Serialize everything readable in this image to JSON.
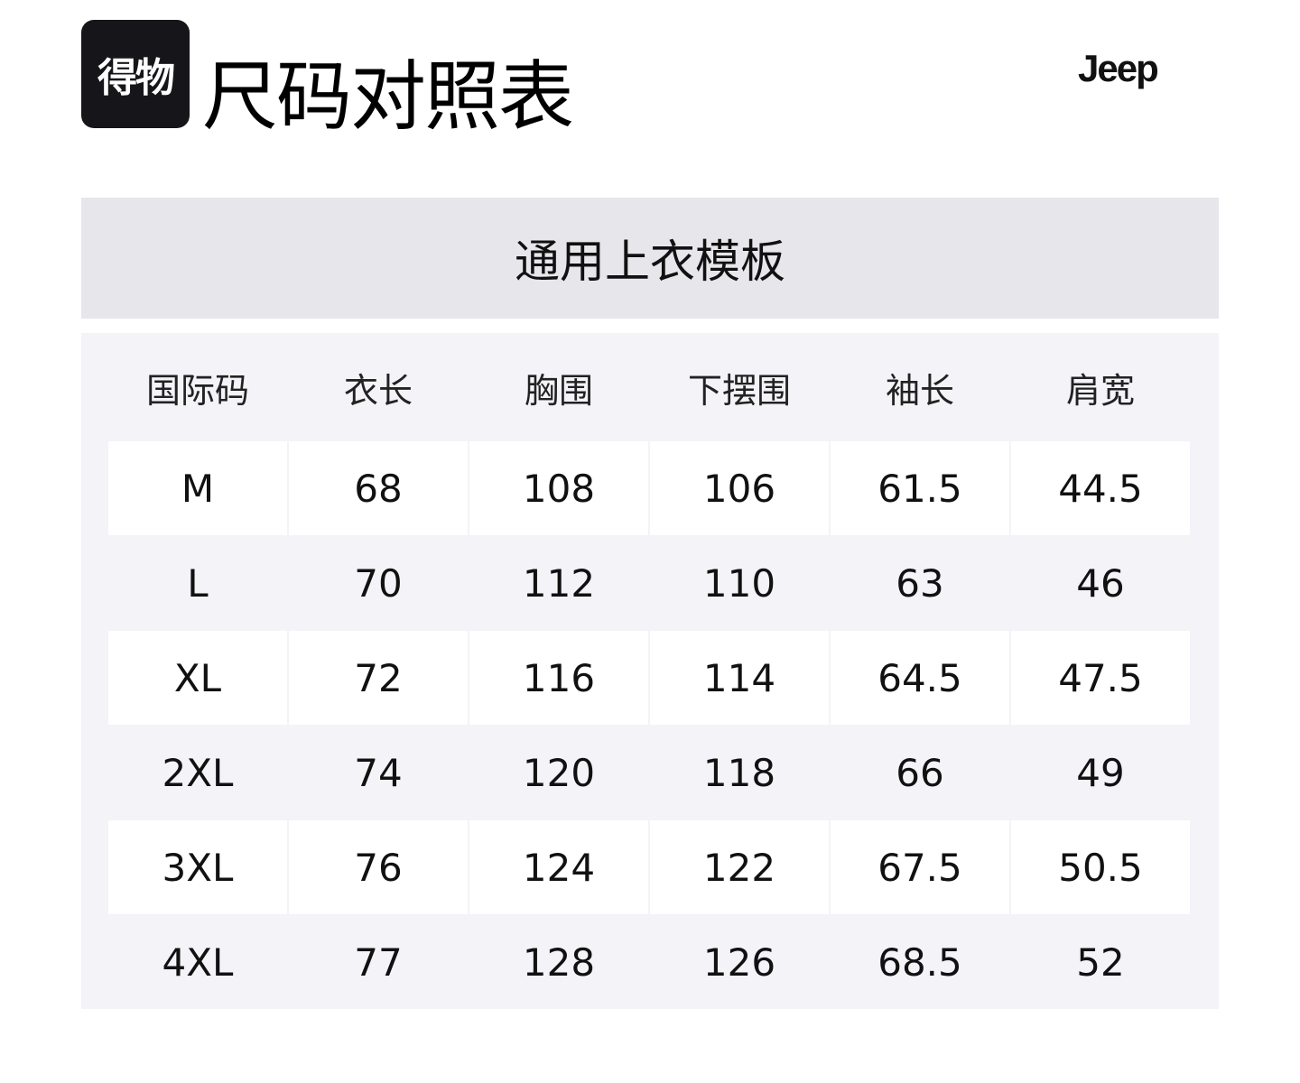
{
  "header": {
    "logo_text": "得物",
    "title": "尺码对照表",
    "brand": "Jeep"
  },
  "template_title": "通用上衣模板",
  "table": {
    "columns": [
      "国际码",
      "衣长",
      "胸围",
      "下摆围",
      "袖长",
      "肩宽"
    ],
    "rows": [
      [
        "M",
        "68",
        "108",
        "106",
        "61.5",
        "44.5"
      ],
      [
        "L",
        "70",
        "112",
        "110",
        "63",
        "46"
      ],
      [
        "XL",
        "72",
        "116",
        "114",
        "64.5",
        "47.5"
      ],
      [
        "2XL",
        "74",
        "120",
        "118",
        "66",
        "49"
      ],
      [
        "3XL",
        "76",
        "124",
        "122",
        "67.5",
        "50.5"
      ],
      [
        "4XL",
        "77",
        "128",
        "126",
        "68.5",
        "52"
      ]
    ]
  }
}
